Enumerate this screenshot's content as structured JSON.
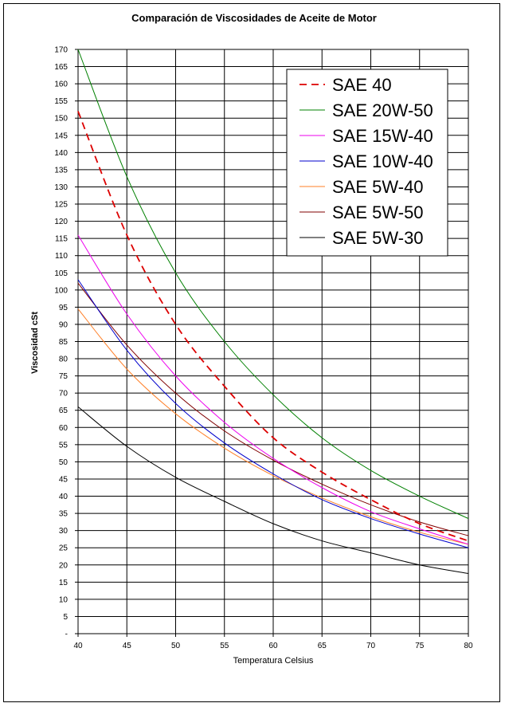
{
  "chart_data": {
    "type": "line",
    "title": "Comparación de Viscosidades de Aceite de Motor",
    "xlabel": "Temperatura Celsius",
    "ylabel": "Viscosidad cSt",
    "xlim": [
      40,
      80
    ],
    "ylim": [
      0,
      170
    ],
    "x_ticks": [
      40,
      45,
      50,
      55,
      60,
      65,
      70,
      75,
      80
    ],
    "y_ticks": [
      0,
      5,
      10,
      15,
      20,
      25,
      30,
      35,
      40,
      45,
      50,
      55,
      60,
      65,
      70,
      75,
      80,
      85,
      90,
      95,
      100,
      105,
      110,
      115,
      120,
      125,
      130,
      135,
      140,
      145,
      150,
      155,
      160,
      165,
      170
    ],
    "y_tick_labels": [
      "-",
      "5",
      "10",
      "15",
      "20",
      "25",
      "30",
      "35",
      "40",
      "45",
      "50",
      "55",
      "60",
      "65",
      "70",
      "75",
      "80",
      "85",
      "90",
      "95",
      "100",
      "105",
      "110",
      "115",
      "120",
      "125",
      "130",
      "135",
      "140",
      "145",
      "150",
      "155",
      "160",
      "165",
      "170"
    ],
    "grid": true,
    "legend_position": "top-right",
    "x": [
      40,
      45,
      50,
      55,
      60,
      65,
      70,
      75,
      80
    ],
    "series": [
      {
        "name": "SAE 40",
        "color": "#dd0000",
        "dash": "dashed",
        "values": [
          152,
          116,
          90,
          72,
          57,
          47,
          39,
          32,
          27
        ]
      },
      {
        "name": "SAE 20W-50",
        "color": "#008000",
        "dash": "solid",
        "values": [
          170,
          133,
          105,
          85,
          69.5,
          57,
          47.5,
          40,
          33.5
        ]
      },
      {
        "name": "SAE 15W-40",
        "color": "#ee00ee",
        "dash": "solid",
        "values": [
          116,
          93,
          75,
          61.5,
          51,
          42.5,
          35.5,
          30.5,
          26
        ]
      },
      {
        "name": "SAE 10W-40",
        "color": "#0000cc",
        "dash": "solid",
        "values": [
          103,
          82.5,
          67,
          55.5,
          46.5,
          39,
          33.5,
          29,
          25
        ]
      },
      {
        "name": "SAE 5W-40",
        "color": "#ff7f27",
        "dash": "solid",
        "values": [
          94.5,
          77,
          64,
          54,
          46,
          39.5,
          34,
          29.5,
          26
        ]
      },
      {
        "name": "SAE 5W-50",
        "color": "#800000",
        "dash": "solid",
        "values": [
          102,
          84,
          70,
          59,
          50.5,
          43.5,
          37.5,
          32.5,
          28.5
        ]
      },
      {
        "name": "SAE 5W-30",
        "color": "#000000",
        "dash": "solid",
        "values": [
          66,
          54.5,
          45.5,
          38.5,
          32,
          27,
          23.5,
          20,
          17.5
        ]
      }
    ]
  }
}
